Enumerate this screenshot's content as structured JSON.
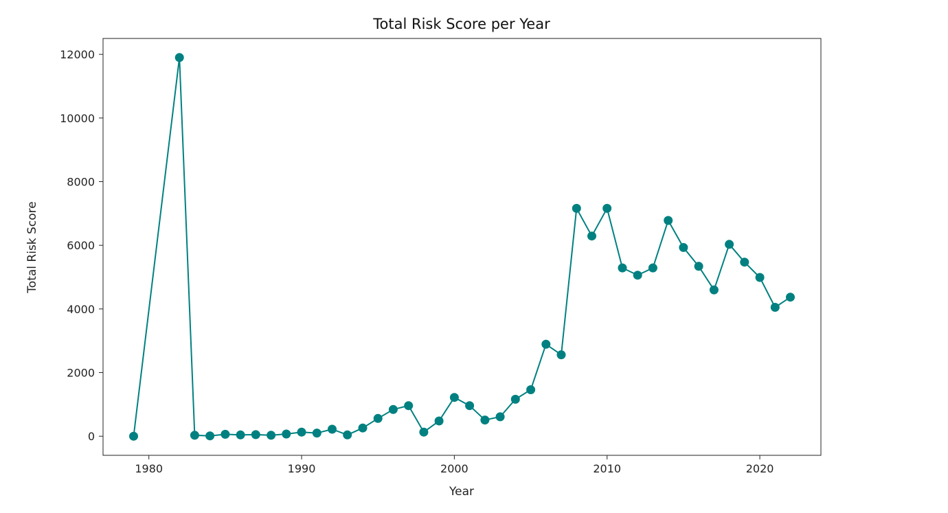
{
  "chart_data": {
    "type": "line",
    "title": "Total Risk Score per Year",
    "xlabel": "Year",
    "ylabel": "Total Risk Score",
    "xlim": [
      1977,
      2024
    ],
    "ylim": [
      -600,
      12500
    ],
    "xticks": [
      1980,
      1990,
      2000,
      2010,
      2020
    ],
    "yticks": [
      0,
      2000,
      4000,
      6000,
      8000,
      10000,
      12000
    ],
    "grid": false,
    "color": "#008080",
    "series": [
      {
        "x": [
          1979,
          1982,
          1983,
          1984,
          1985,
          1986,
          1987,
          1988,
          1989,
          1990,
          1991,
          1992,
          1993,
          1994,
          1995,
          1996,
          1997,
          1998,
          1999,
          2000,
          2001,
          2002,
          2003,
          2004,
          2005,
          2006,
          2007,
          2008,
          2009,
          2010,
          2011,
          2012,
          2013,
          2014,
          2015,
          2016,
          2017,
          2018,
          2019,
          2020,
          2021,
          2022
        ],
        "y": [
          0,
          11900,
          30,
          10,
          60,
          40,
          50,
          30,
          70,
          130,
          100,
          220,
          40,
          260,
          560,
          840,
          960,
          130,
          480,
          1220,
          960,
          510,
          610,
          1160,
          1460,
          2890,
          2560,
          7160,
          6290,
          7160,
          5290,
          5060,
          5290,
          6780,
          5930,
          5340,
          4600,
          6030,
          5470,
          4990,
          4050,
          4370
        ]
      }
    ]
  }
}
